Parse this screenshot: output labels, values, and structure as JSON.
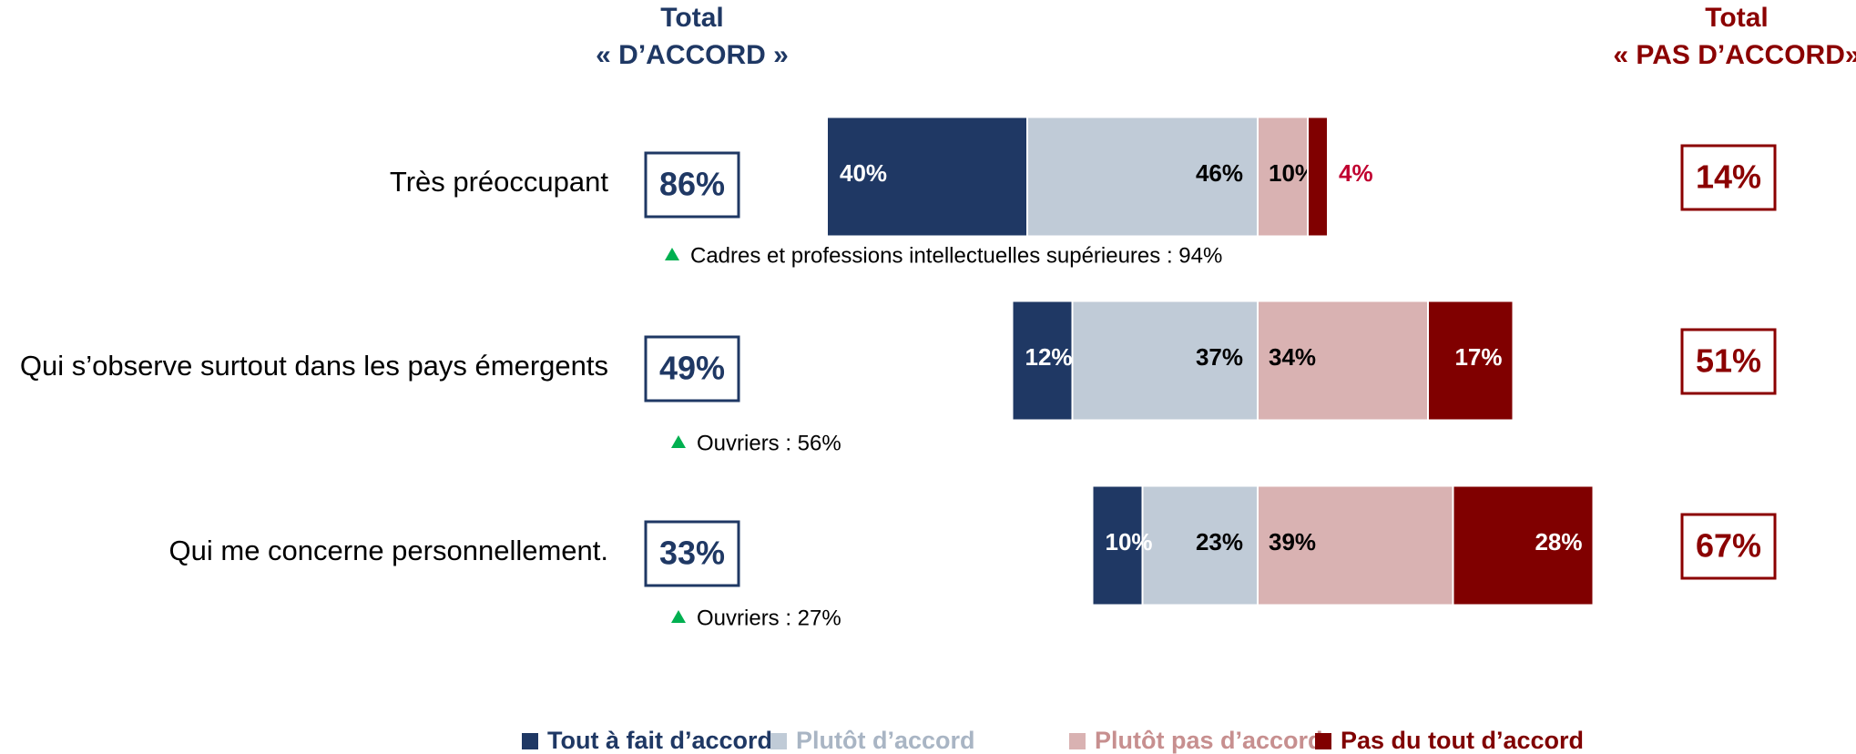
{
  "chart_data": {
    "type": "diverging_bar",
    "categories": [
      "Très préoccupant",
      "Qui s’observe surtout dans les pays émergents",
      "Qui me concerne personnellement."
    ],
    "series": [
      {
        "name": "Tout à fait d’accord",
        "color": "#1f3864",
        "side": "agree",
        "values": [
          40,
          12,
          10
        ],
        "value_labels": [
          "40%",
          "12%",
          "10%"
        ]
      },
      {
        "name": "Plutôt d’accord",
        "color": "#c0cbd7",
        "side": "agree",
        "values": [
          46,
          37,
          23
        ],
        "value_labels": [
          "46%",
          "37%",
          "23%"
        ]
      },
      {
        "name": "Plutôt pas d’accord",
        "color": "#d9b2b2",
        "side": "disagree",
        "values": [
          10,
          34,
          39
        ],
        "value_labels": [
          "10%",
          "34%",
          "39%"
        ]
      },
      {
        "name": "Pas du tout d’accord",
        "color": "#800000",
        "side": "disagree",
        "values": [
          4,
          17,
          28
        ],
        "value_labels": [
          "4%",
          "17%",
          "28%"
        ]
      }
    ],
    "agree_header": [
      "Total",
      "« D’ACCORD »"
    ],
    "disagree_header": [
      "Total",
      "« PAS D’ACCORD»"
    ],
    "agree_totals": {
      "color": "#1f3864",
      "values": [
        86,
        49,
        33
      ],
      "value_labels": [
        "86%",
        "49%",
        "33%"
      ]
    },
    "disagree_totals": {
      "color": "#8b0000",
      "values": [
        14,
        51,
        67
      ],
      "value_labels": [
        "14%",
        "51%",
        "67%"
      ]
    },
    "notes": [
      "Cadres et professions intellectuelles supérieures : 94%",
      "Ouvriers : 56%",
      "Ouvriers : 27%"
    ],
    "note_marker_color": "#00b050",
    "legend": "bottom"
  }
}
